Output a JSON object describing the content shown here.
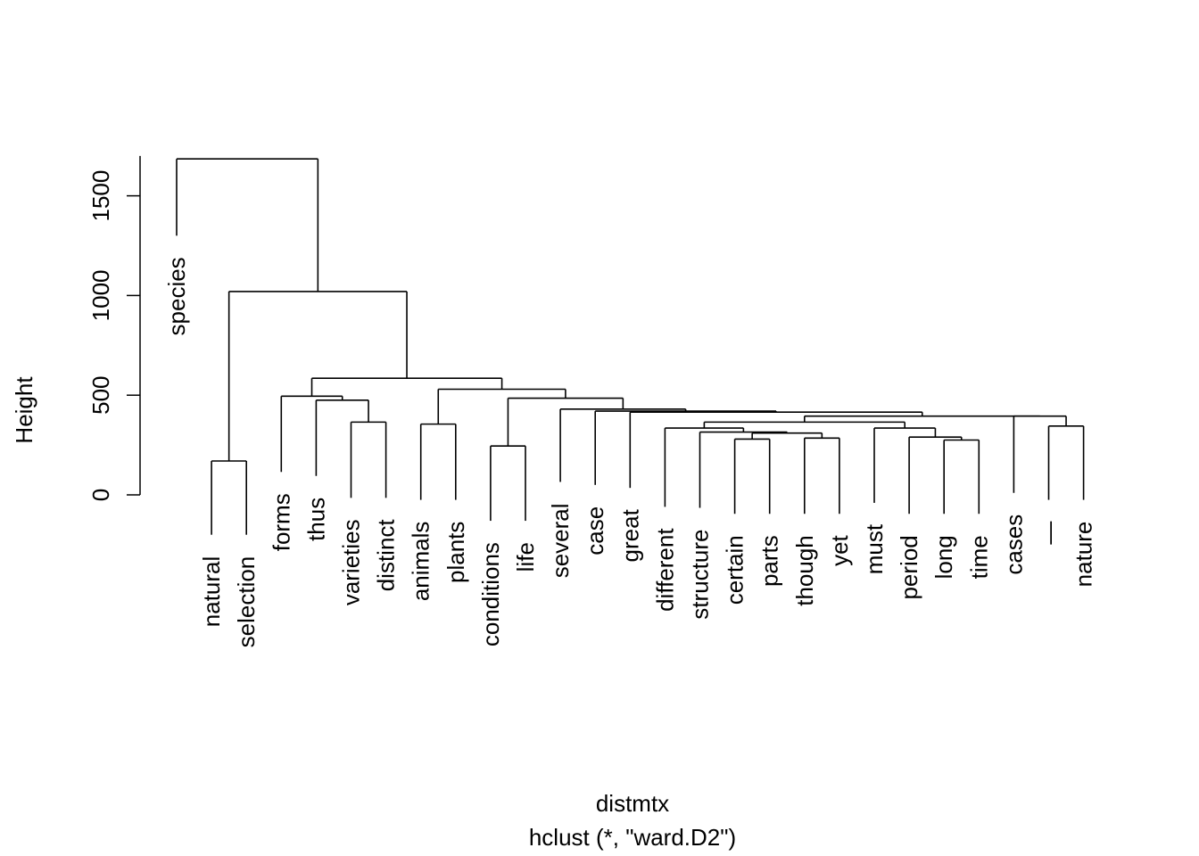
{
  "chart_data": {
    "type": "dendrogram",
    "title": "",
    "xlabel": "distmtx",
    "sub": "hclust (*, \"ward.D2\")",
    "ylabel": "Height",
    "ylim": [
      0,
      1700
    ],
    "yticks": [
      0,
      500,
      1000,
      1500
    ],
    "leaf_order": [
      "species",
      "natural",
      "selection",
      "forms",
      "thus",
      "varieties",
      "distinct",
      "animals",
      "plants",
      "conditions",
      "life",
      "several",
      "case",
      "great",
      "different",
      "structure",
      "certain",
      "parts",
      "though",
      "yet",
      "must",
      "period",
      "long",
      "time",
      "cases",
      "—",
      "nature"
    ],
    "merges": [
      {
        "left": "natural",
        "right": "selection",
        "height": 170
      },
      {
        "left": "conditions",
        "right": "life",
        "height": 245
      },
      {
        "left": "long",
        "right": "time",
        "height": 275
      },
      {
        "left": "certain",
        "right": "parts",
        "height": 280
      },
      {
        "left": "though",
        "right": "yet",
        "height": 285
      },
      {
        "left": "period",
        "right": [
          "long",
          "time"
        ],
        "height": 290
      },
      {
        "left": [
          "certain",
          "parts"
        ],
        "right": [
          "though",
          "yet"
        ],
        "height": 310
      },
      {
        "left": "structure",
        "right": [
          [
            "certain",
            "parts"
          ],
          [
            "though",
            "yet"
          ]
        ],
        "height": 315
      },
      {
        "left": "must",
        "right": [
          "period",
          [
            "long",
            "time"
          ]
        ],
        "height": 335
      },
      {
        "left": "different",
        "right": [
          "structure",
          "…"
        ],
        "height": 335
      },
      {
        "left": "—",
        "right": "nature",
        "height": 345
      },
      {
        "left": "animals",
        "right": "plants",
        "height": 355
      },
      {
        "left": "varieties",
        "right": "distinct",
        "height": 365
      },
      {
        "left": [
          "different",
          "…"
        ],
        "right": [
          "must",
          "…"
        ],
        "height": 365
      },
      {
        "left": "cases",
        "right": [
          "—",
          "nature"
        ],
        "height": 395
      },
      {
        "left": [
          [
            "different",
            "…"
          ],
          [
            "must",
            "…"
          ]
        ],
        "right": [
          "cases",
          "…"
        ],
        "height": 395
      },
      {
        "left": "great",
        "right": [
          [
            "different",
            "…"
          ],
          [
            "cases",
            "…"
          ]
        ],
        "height": 415
      },
      {
        "left": "case",
        "right": [
          "great",
          "…"
        ],
        "height": 420
      },
      {
        "left": "several",
        "right": [
          "case",
          "…"
        ],
        "height": 430
      },
      {
        "left": "thus",
        "right": [
          "varieties",
          "distinct"
        ],
        "height": 475
      },
      {
        "left": [
          "conditions",
          "life"
        ],
        "right": [
          "several",
          "…"
        ],
        "height": 485
      },
      {
        "left": "forms",
        "right": [
          "thus",
          "…"
        ],
        "height": 495
      },
      {
        "left": [
          "animals",
          "plants"
        ],
        "right": [
          [
            "conditions",
            "life"
          ],
          "…"
        ],
        "height": 530
      },
      {
        "left": [
          "forms",
          "…"
        ],
        "right": [
          [
            "animals",
            "plants"
          ],
          "…"
        ],
        "height": 585
      },
      {
        "left": [
          "natural",
          "selection"
        ],
        "right": [
          [
            "forms",
            "…"
          ],
          "…"
        ],
        "height": 1020
      },
      {
        "left": "species",
        "right": "…",
        "height": 1685
      }
    ],
    "leaf_hang_bottoms": {
      "species": 1300,
      "natural": -200,
      "selection": -200,
      "forms": 115,
      "thus": 95,
      "varieties": -15,
      "distinct": -15,
      "animals": -25,
      "plants": -25,
      "conditions": -130,
      "life": -130,
      "several": 65,
      "case": 50,
      "great": 35,
      "different": -60,
      "structure": -65,
      "certain": -95,
      "parts": -95,
      "though": -95,
      "yet": -95,
      "must": -40,
      "period": -95,
      "long": -95,
      "time": -95,
      "cases": 10,
      "—": -25,
      "nature": -25
    },
    "legend": null,
    "grid": false
  }
}
